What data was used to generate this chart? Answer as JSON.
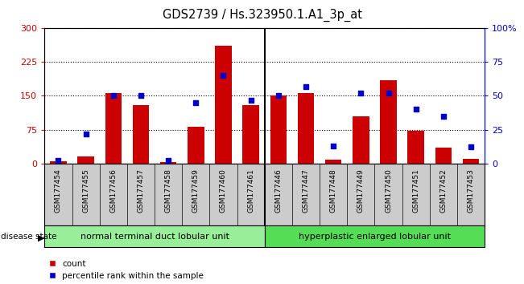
{
  "title": "GDS2739 / Hs.323950.1.A1_3p_at",
  "samples": [
    "GSM177454",
    "GSM177455",
    "GSM177456",
    "GSM177457",
    "GSM177458",
    "GSM177459",
    "GSM177460",
    "GSM177461",
    "GSM177446",
    "GSM177447",
    "GSM177448",
    "GSM177449",
    "GSM177450",
    "GSM177451",
    "GSM177452",
    "GSM177453"
  ],
  "counts": [
    5,
    15,
    157,
    130,
    3,
    82,
    262,
    130,
    150,
    157,
    8,
    105,
    185,
    73,
    35,
    10
  ],
  "percentiles": [
    2,
    22,
    50,
    50,
    2,
    45,
    65,
    47,
    50,
    57,
    13,
    52,
    52,
    40,
    35,
    12
  ],
  "group1_label": "normal terminal duct lobular unit",
  "group2_label": "hyperplastic enlarged lobular unit",
  "group1_count": 8,
  "group2_count": 8,
  "ylim_left": [
    0,
    300
  ],
  "ylim_right": [
    0,
    100
  ],
  "yticks_left": [
    0,
    75,
    150,
    225,
    300
  ],
  "yticks_right": [
    0,
    25,
    50,
    75,
    100
  ],
  "bar_color": "#cc0000",
  "dot_color": "#0000cc",
  "plot_bg": "#ffffff",
  "xticklabel_bg": "#cccccc",
  "group1_bg": "#99ee99",
  "group2_bg": "#55dd55",
  "legend_count_label": "count",
  "legend_pct_label": "percentile rank within the sample",
  "bar_width": 0.6
}
